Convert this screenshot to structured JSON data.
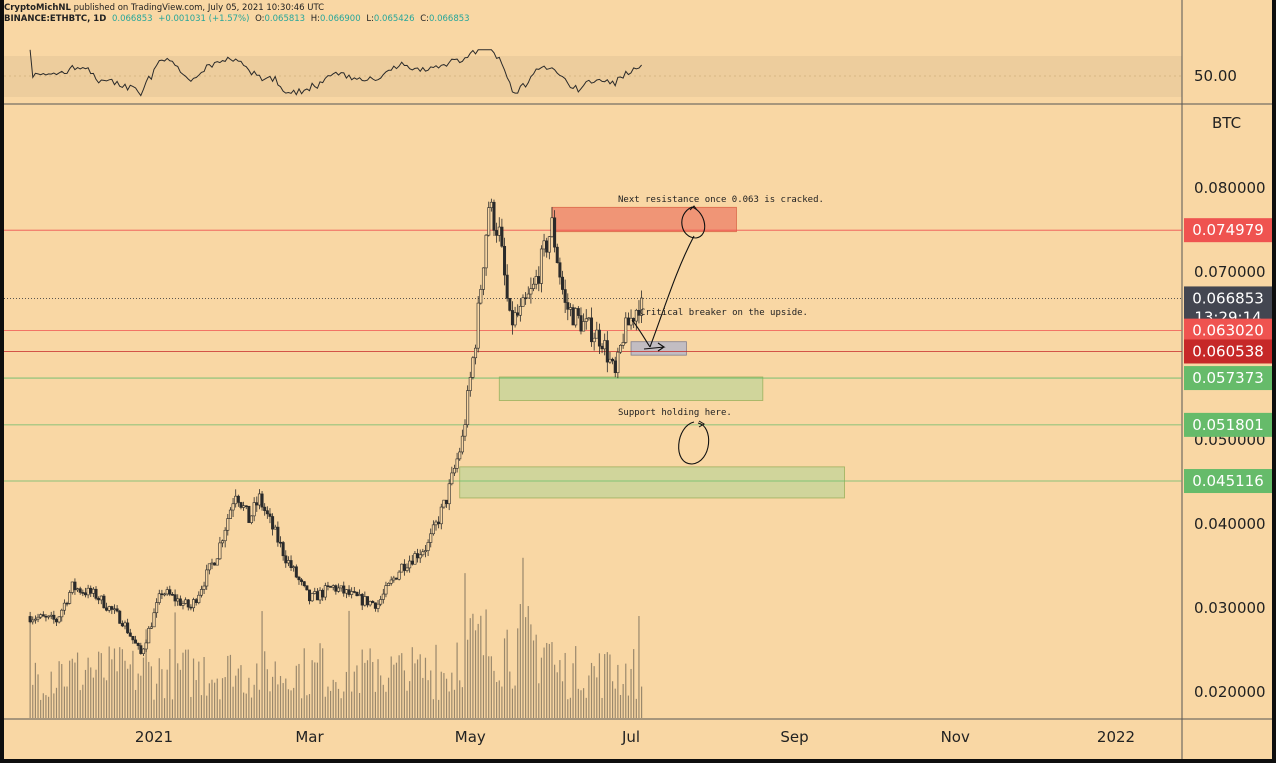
{
  "header": {
    "line1_user": "CryptoMichNL",
    "line1_rest": "published on TradingView.com, July 05, 2021 10:30:46 UTC",
    "symbol": "BINANCE:ETHBTC, 1D",
    "last": "0.066853",
    "change": "+0.001031 (+1.57%)",
    "o_label": "O:",
    "o_val": "0.065813",
    "h_label": "H:",
    "h_val": "0.066900",
    "l_label": "L:",
    "l_val": "0.065426",
    "c_label": "C:",
    "c_val": "0.066853"
  },
  "colors": {
    "background": "#f9d7a4",
    "resistance_zone": "#ef8a6e",
    "support_zone": "#c9d59a",
    "breaker_zone": "#b9b9c8",
    "price_tag_dark": "#434651",
    "tag_red": "#ef5350",
    "tag_darkred": "#c62828",
    "tag_green": "#66bb6a"
  },
  "rsi": {
    "level_label": "50.00"
  },
  "annotations": {
    "resistance_note": "Next resistance once 0.063 is cracked.",
    "breaker_note": "Critical breaker on the upside.",
    "support_note": "Support holding here."
  },
  "chart_data": {
    "type": "candlestick",
    "symbol": "ETHBTC",
    "exchange": "BINANCE",
    "interval": "1D",
    "unit_label": "BTC",
    "ylim": [
      0.0165,
      0.0965
    ],
    "y_ticks": [
      "0.080000",
      "0.070000",
      "0.050000",
      "0.040000",
      "0.030000",
      "0.020000"
    ],
    "x_ticks": [
      "2021",
      "Mar",
      "May",
      "Jul",
      "Sep",
      "Nov",
      "2022"
    ],
    "close_series": [
      {
        "date": "2020-11-15",
        "close": 0.029
      },
      {
        "date": "2020-11-25",
        "close": 0.0285
      },
      {
        "date": "2020-12-01",
        "close": 0.0325
      },
      {
        "date": "2020-12-10",
        "close": 0.0315
      },
      {
        "date": "2020-12-20",
        "close": 0.0285
      },
      {
        "date": "2020-12-27",
        "close": 0.0245
      },
      {
        "date": "2021-01-04",
        "close": 0.032
      },
      {
        "date": "2021-01-15",
        "close": 0.03
      },
      {
        "date": "2021-01-25",
        "close": 0.0365
      },
      {
        "date": "2021-02-01",
        "close": 0.044
      },
      {
        "date": "2021-02-06",
        "close": 0.0405
      },
      {
        "date": "2021-02-10",
        "close": 0.043
      },
      {
        "date": "2021-02-20",
        "close": 0.036
      },
      {
        "date": "2021-03-01",
        "close": 0.031
      },
      {
        "date": "2021-03-10",
        "close": 0.0325
      },
      {
        "date": "2021-03-20",
        "close": 0.031
      },
      {
        "date": "2021-03-27",
        "close": 0.0305
      },
      {
        "date": "2021-04-05",
        "close": 0.035
      },
      {
        "date": "2021-04-15",
        "close": 0.0375
      },
      {
        "date": "2021-04-22",
        "close": 0.043
      },
      {
        "date": "2021-04-28",
        "close": 0.05
      },
      {
        "date": "2021-05-03",
        "close": 0.062
      },
      {
        "date": "2021-05-08",
        "close": 0.078
      },
      {
        "date": "2021-05-12",
        "close": 0.0745
      },
      {
        "date": "2021-05-16",
        "close": 0.064
      },
      {
        "date": "2021-05-20",
        "close": 0.065
      },
      {
        "date": "2021-05-25",
        "close": 0.068
      },
      {
        "date": "2021-06-01",
        "close": 0.0755
      },
      {
        "date": "2021-06-06",
        "close": 0.066
      },
      {
        "date": "2021-06-12",
        "close": 0.064
      },
      {
        "date": "2021-06-20",
        "close": 0.062
      },
      {
        "date": "2021-06-25",
        "close": 0.0575
      },
      {
        "date": "2021-06-28",
        "close": 0.0625
      },
      {
        "date": "2021-07-02",
        "close": 0.065
      },
      {
        "date": "2021-07-05",
        "close": 0.0669
      }
    ],
    "price_tags": [
      {
        "label": "0.074979",
        "value": 0.074979,
        "color": "#ef5350"
      },
      {
        "label": "0.066853",
        "value": 0.066853,
        "color": "#434651",
        "sub": "13:29:14"
      },
      {
        "label": "0.063020",
        "value": 0.06302,
        "color": "#ef5350"
      },
      {
        "label": "0.060538",
        "value": 0.060538,
        "color": "#c62828"
      },
      {
        "label": "0.057373",
        "value": 0.057373,
        "color": "#66bb6a"
      },
      {
        "label": "0.051801",
        "value": 0.051801,
        "color": "#66bb6a"
      },
      {
        "label": "0.045116",
        "value": 0.045116,
        "color": "#66bb6a"
      }
    ],
    "zones": [
      {
        "kind": "resistance",
        "from": "2021-06-01",
        "to": "2021-08-10",
        "low": 0.0748,
        "high": 0.0777
      },
      {
        "kind": "breaker",
        "from": "2021-07-01",
        "to": "2021-07-22",
        "low": 0.0601,
        "high": 0.0617
      },
      {
        "kind": "support",
        "from": "2021-05-12",
        "to": "2021-08-20",
        "low": 0.0547,
        "high": 0.0575
      },
      {
        "kind": "support",
        "from": "2021-04-27",
        "to": "2021-09-20",
        "low": 0.0431,
        "high": 0.0468
      }
    ]
  }
}
